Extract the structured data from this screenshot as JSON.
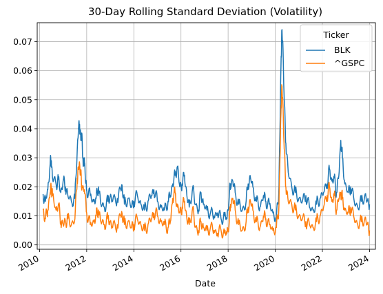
{
  "chart_data": {
    "type": "line",
    "title": "30-Day Rolling Standard Deviation (Volatility)",
    "xlabel": "Date",
    "ylabel": "",
    "xlim": [
      2009.9,
      2024.25
    ],
    "ylim": [
      -0.0015,
      0.0765
    ],
    "x_ticks": [
      2010,
      2012,
      2014,
      2016,
      2018,
      2020,
      2022,
      2024
    ],
    "x_tick_labels": [
      "2010",
      "2012",
      "2014",
      "2016",
      "2018",
      "2020",
      "2022",
      "2024"
    ],
    "y_ticks": [
      0.0,
      0.01,
      0.02,
      0.03,
      0.04,
      0.05,
      0.06,
      0.07
    ],
    "y_tick_labels": [
      "0.00",
      "0.01",
      "0.02",
      "0.03",
      "0.04",
      "0.05",
      "0.06",
      "0.07"
    ],
    "grid": true,
    "legend": {
      "title": "Ticker",
      "placement": "upper right"
    },
    "x_unit": "year",
    "series": [
      {
        "name": "BLK",
        "color": "#1f77b4",
        "points": [
          [
            2010.15,
            0.0175
          ],
          [
            2010.25,
            0.015
          ],
          [
            2010.35,
            0.019
          ],
          [
            2010.45,
            0.028
          ],
          [
            2010.5,
            0.029
          ],
          [
            2010.55,
            0.023
          ],
          [
            2010.7,
            0.021
          ],
          [
            2010.8,
            0.0225
          ],
          [
            2010.9,
            0.018
          ],
          [
            2011.0,
            0.022
          ],
          [
            2011.1,
            0.02
          ],
          [
            2011.2,
            0.017
          ],
          [
            2011.35,
            0.015
          ],
          [
            2011.5,
            0.016
          ],
          [
            2011.6,
            0.033
          ],
          [
            2011.65,
            0.04
          ],
          [
            2011.7,
            0.0415
          ],
          [
            2011.75,
            0.036
          ],
          [
            2011.8,
            0.038
          ],
          [
            2011.85,
            0.027
          ],
          [
            2011.9,
            0.03
          ],
          [
            2011.95,
            0.022
          ],
          [
            2012.0,
            0.019
          ],
          [
            2012.15,
            0.017
          ],
          [
            2012.3,
            0.015
          ],
          [
            2012.4,
            0.016
          ],
          [
            2012.5,
            0.02
          ],
          [
            2012.6,
            0.014
          ],
          [
            2012.75,
            0.013
          ],
          [
            2012.9,
            0.015
          ],
          [
            2013.0,
            0.017
          ],
          [
            2013.1,
            0.015
          ],
          [
            2013.3,
            0.016
          ],
          [
            2013.45,
            0.019
          ],
          [
            2013.5,
            0.0205
          ],
          [
            2013.6,
            0.014
          ],
          [
            2013.75,
            0.016
          ],
          [
            2013.9,
            0.013
          ],
          [
            2014.0,
            0.015
          ],
          [
            2014.15,
            0.017
          ],
          [
            2014.3,
            0.014
          ],
          [
            2014.45,
            0.012
          ],
          [
            2014.6,
            0.015
          ],
          [
            2014.75,
            0.017
          ],
          [
            2014.85,
            0.019
          ],
          [
            2015.0,
            0.015
          ],
          [
            2015.15,
            0.013
          ],
          [
            2015.3,
            0.012
          ],
          [
            2015.45,
            0.015
          ],
          [
            2015.55,
            0.017
          ],
          [
            2015.65,
            0.021
          ],
          [
            2015.75,
            0.024
          ],
          [
            2015.85,
            0.027
          ],
          [
            2015.95,
            0.02
          ],
          [
            2016.05,
            0.021
          ],
          [
            2016.15,
            0.024
          ],
          [
            2016.25,
            0.017
          ],
          [
            2016.35,
            0.013
          ],
          [
            2016.5,
            0.02
          ],
          [
            2016.6,
            0.014
          ],
          [
            2016.75,
            0.012
          ],
          [
            2016.85,
            0.018
          ],
          [
            2016.95,
            0.014
          ],
          [
            2017.1,
            0.012
          ],
          [
            2017.25,
            0.011
          ],
          [
            2017.4,
            0.01
          ],
          [
            2017.55,
            0.011
          ],
          [
            2017.7,
            0.009
          ],
          [
            2017.85,
            0.01
          ],
          [
            2017.95,
            0.009
          ],
          [
            2018.05,
            0.017
          ],
          [
            2018.1,
            0.021
          ],
          [
            2018.2,
            0.022
          ],
          [
            2018.3,
            0.018
          ],
          [
            2018.45,
            0.014
          ],
          [
            2018.6,
            0.012
          ],
          [
            2018.75,
            0.014
          ],
          [
            2018.85,
            0.021
          ],
          [
            2018.95,
            0.023
          ],
          [
            2019.05,
            0.02
          ],
          [
            2019.2,
            0.015
          ],
          [
            2019.35,
            0.013
          ],
          [
            2019.5,
            0.017
          ],
          [
            2019.6,
            0.015
          ],
          [
            2019.75,
            0.014
          ],
          [
            2019.9,
            0.011
          ],
          [
            2020.05,
            0.009
          ],
          [
            2020.15,
            0.018
          ],
          [
            2020.2,
            0.04
          ],
          [
            2020.25,
            0.065
          ],
          [
            2020.28,
            0.073
          ],
          [
            2020.32,
            0.07
          ],
          [
            2020.38,
            0.05
          ],
          [
            2020.45,
            0.035
          ],
          [
            2020.55,
            0.025
          ],
          [
            2020.7,
            0.02
          ],
          [
            2020.85,
            0.018
          ],
          [
            2021.0,
            0.016
          ],
          [
            2021.15,
            0.015
          ],
          [
            2021.3,
            0.017
          ],
          [
            2021.45,
            0.013
          ],
          [
            2021.6,
            0.012
          ],
          [
            2021.75,
            0.014
          ],
          [
            2021.9,
            0.016
          ],
          [
            2022.05,
            0.018
          ],
          [
            2022.2,
            0.021
          ],
          [
            2022.3,
            0.026
          ],
          [
            2022.4,
            0.022
          ],
          [
            2022.5,
            0.023
          ],
          [
            2022.6,
            0.018
          ],
          [
            2022.7,
            0.024
          ],
          [
            2022.78,
            0.036
          ],
          [
            2022.85,
            0.03
          ],
          [
            2022.95,
            0.021
          ],
          [
            2023.1,
            0.018
          ],
          [
            2023.2,
            0.02
          ],
          [
            2023.35,
            0.015
          ],
          [
            2023.5,
            0.013
          ],
          [
            2023.65,
            0.015
          ],
          [
            2023.8,
            0.017
          ],
          [
            2023.9,
            0.015
          ],
          [
            2024.0,
            0.014
          ]
        ]
      },
      {
        "name": "^GSPC",
        "color": "#ff7f0e",
        "points": [
          [
            2010.15,
            0.012
          ],
          [
            2010.25,
            0.009
          ],
          [
            2010.35,
            0.012
          ],
          [
            2010.45,
            0.018
          ],
          [
            2010.5,
            0.02
          ],
          [
            2010.55,
            0.017
          ],
          [
            2010.7,
            0.012
          ],
          [
            2010.8,
            0.014
          ],
          [
            2010.9,
            0.008
          ],
          [
            2011.0,
            0.007
          ],
          [
            2011.1,
            0.008
          ],
          [
            2011.2,
            0.009
          ],
          [
            2011.35,
            0.007
          ],
          [
            2011.5,
            0.009
          ],
          [
            2011.6,
            0.023
          ],
          [
            2011.65,
            0.026
          ],
          [
            2011.7,
            0.028
          ],
          [
            2011.75,
            0.024
          ],
          [
            2011.8,
            0.02
          ],
          [
            2011.9,
            0.019
          ],
          [
            2012.0,
            0.011
          ],
          [
            2012.15,
            0.007
          ],
          [
            2012.3,
            0.008
          ],
          [
            2012.4,
            0.01
          ],
          [
            2012.5,
            0.012
          ],
          [
            2012.6,
            0.008
          ],
          [
            2012.75,
            0.007
          ],
          [
            2012.9,
            0.009
          ],
          [
            2013.0,
            0.008
          ],
          [
            2013.1,
            0.006
          ],
          [
            2013.3,
            0.007
          ],
          [
            2013.45,
            0.01
          ],
          [
            2013.5,
            0.011
          ],
          [
            2013.6,
            0.007
          ],
          [
            2013.75,
            0.008
          ],
          [
            2013.9,
            0.006
          ],
          [
            2014.0,
            0.007
          ],
          [
            2014.15,
            0.009
          ],
          [
            2014.3,
            0.007
          ],
          [
            2014.45,
            0.005
          ],
          [
            2014.6,
            0.007
          ],
          [
            2014.75,
            0.009
          ],
          [
            2014.85,
            0.011
          ],
          [
            2015.0,
            0.01
          ],
          [
            2015.15,
            0.008
          ],
          [
            2015.3,
            0.007
          ],
          [
            2015.45,
            0.006
          ],
          [
            2015.55,
            0.008
          ],
          [
            2015.65,
            0.016
          ],
          [
            2015.75,
            0.018
          ],
          [
            2015.85,
            0.013
          ],
          [
            2015.95,
            0.011
          ],
          [
            2016.05,
            0.013
          ],
          [
            2016.15,
            0.015
          ],
          [
            2016.25,
            0.009
          ],
          [
            2016.35,
            0.007
          ],
          [
            2016.5,
            0.013
          ],
          [
            2016.6,
            0.006
          ],
          [
            2016.75,
            0.005
          ],
          [
            2016.85,
            0.008
          ],
          [
            2016.95,
            0.006
          ],
          [
            2017.1,
            0.005
          ],
          [
            2017.25,
            0.006
          ],
          [
            2017.4,
            0.005
          ],
          [
            2017.55,
            0.004
          ],
          [
            2017.7,
            0.005
          ],
          [
            2017.85,
            0.004
          ],
          [
            2017.95,
            0.004
          ],
          [
            2018.05,
            0.008
          ],
          [
            2018.1,
            0.014
          ],
          [
            2018.2,
            0.016
          ],
          [
            2018.3,
            0.012
          ],
          [
            2018.45,
            0.007
          ],
          [
            2018.6,
            0.005
          ],
          [
            2018.75,
            0.007
          ],
          [
            2018.85,
            0.013
          ],
          [
            2018.95,
            0.015
          ],
          [
            2019.05,
            0.012
          ],
          [
            2019.2,
            0.008
          ],
          [
            2019.35,
            0.006
          ],
          [
            2019.5,
            0.01
          ],
          [
            2019.6,
            0.009
          ],
          [
            2019.75,
            0.007
          ],
          [
            2019.9,
            0.005
          ],
          [
            2020.05,
            0.006
          ],
          [
            2020.15,
            0.012
          ],
          [
            2020.2,
            0.03
          ],
          [
            2020.25,
            0.048
          ],
          [
            2020.28,
            0.054
          ],
          [
            2020.32,
            0.05
          ],
          [
            2020.38,
            0.033
          ],
          [
            2020.45,
            0.02
          ],
          [
            2020.55,
            0.015
          ],
          [
            2020.7,
            0.014
          ],
          [
            2020.85,
            0.012
          ],
          [
            2021.0,
            0.01
          ],
          [
            2021.15,
            0.009
          ],
          [
            2021.3,
            0.008
          ],
          [
            2021.45,
            0.007
          ],
          [
            2021.6,
            0.006
          ],
          [
            2021.75,
            0.008
          ],
          [
            2021.9,
            0.01
          ],
          [
            2022.05,
            0.013
          ],
          [
            2022.2,
            0.017
          ],
          [
            2022.3,
            0.02
          ],
          [
            2022.4,
            0.015
          ],
          [
            2022.5,
            0.017
          ],
          [
            2022.6,
            0.012
          ],
          [
            2022.7,
            0.016
          ],
          [
            2022.78,
            0.018
          ],
          [
            2022.85,
            0.016
          ],
          [
            2022.95,
            0.012
          ],
          [
            2023.1,
            0.011
          ],
          [
            2023.2,
            0.013
          ],
          [
            2023.35,
            0.009
          ],
          [
            2023.5,
            0.007
          ],
          [
            2023.65,
            0.008
          ],
          [
            2023.8,
            0.009
          ],
          [
            2023.9,
            0.007
          ],
          [
            2024.0,
            0.005
          ]
        ]
      }
    ]
  }
}
